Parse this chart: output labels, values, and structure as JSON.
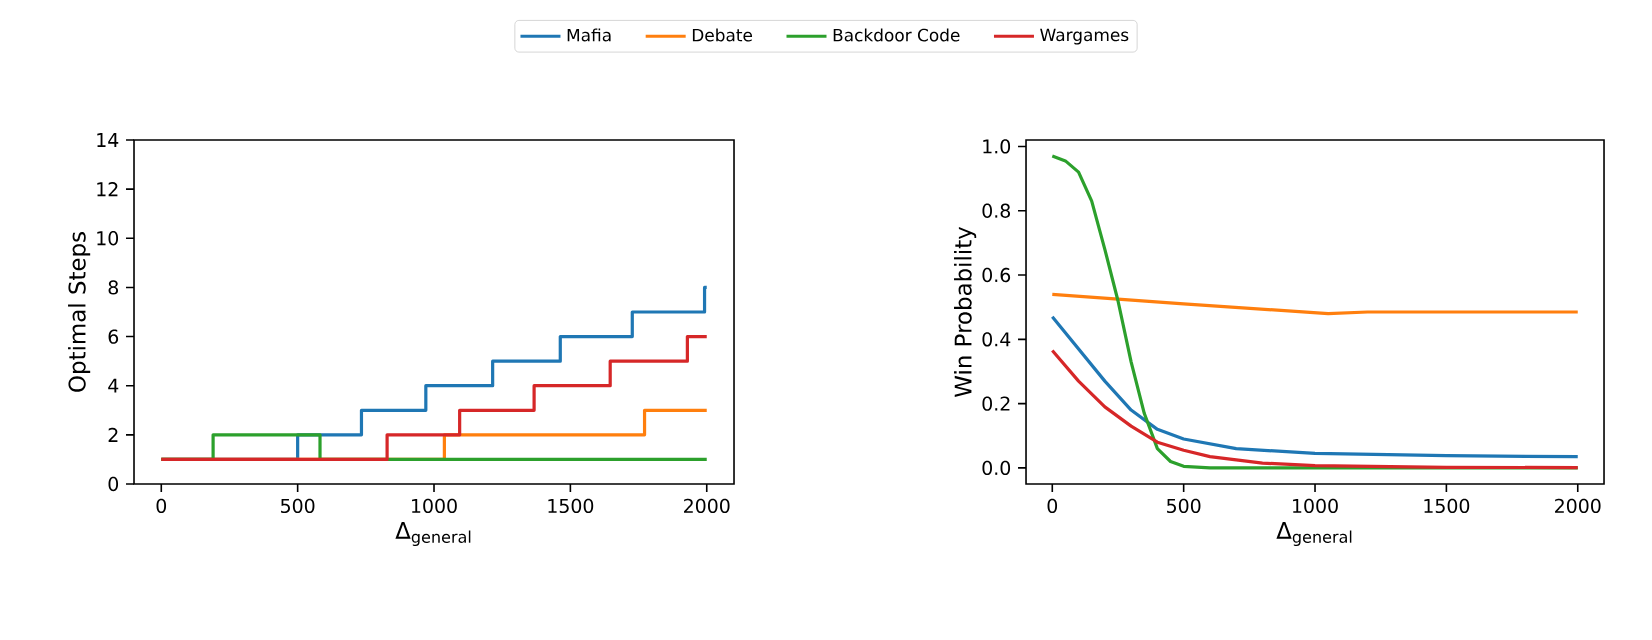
{
  "chart_data": [
    {
      "type": "step",
      "ylabel": "Optimal Steps",
      "xlabel": "Δ$_{general}$",
      "xlim": [
        -100,
        2100
      ],
      "ylim": [
        0,
        14
      ],
      "xticks": [
        0,
        500,
        1000,
        1500,
        2000
      ],
      "yticks": [
        0,
        2,
        4,
        6,
        8,
        10,
        12,
        14
      ],
      "legend": "top",
      "series": [
        {
          "name": "Mafia",
          "color": "#1f77b4",
          "x": [
            0,
            500,
            734,
            970,
            1215,
            1463,
            1727,
            1992,
            2000
          ],
          "values": [
            1,
            2,
            3,
            4,
            5,
            6,
            7,
            8,
            8
          ]
        },
        {
          "name": "Debate",
          "color": "#ff7f0e",
          "x": [
            0,
            1038,
            1772,
            2000
          ],
          "values": [
            1,
            2,
            3,
            3
          ]
        },
        {
          "name": "Backdoor Code",
          "color": "#2ca02c",
          "x": [
            0,
            190,
            582,
            2000
          ],
          "values": [
            1,
            2,
            1,
            1
          ]
        },
        {
          "name": "Wargames",
          "color": "#d62728",
          "x": [
            0,
            828,
            1094,
            1367,
            1646,
            1929,
            2000
          ],
          "values": [
            1,
            2,
            3,
            4,
            5,
            6,
            6
          ]
        }
      ]
    },
    {
      "type": "line",
      "ylabel": "Win Probability",
      "xlabel": "Δ$_{general}$",
      "xlim": [
        -100,
        2100
      ],
      "ylim": [
        -0.05,
        1.02
      ],
      "xticks": [
        0,
        500,
        1000,
        1500,
        2000
      ],
      "yticks": [
        {
          "value": 0,
          "label": "0.0"
        },
        0.2,
        0.4,
        0.6,
        0.8,
        {
          "value": 1,
          "label": "1.0"
        }
      ],
      "series": [
        {
          "color": "#1f77b4",
          "x": [
            0,
            100,
            200,
            300,
            400,
            500,
            600,
            700,
            1000,
            1500,
            2000
          ],
          "values": [
            0.47,
            0.37,
            0.27,
            0.18,
            0.12,
            0.09,
            0.075,
            0.06,
            0.045,
            0.038,
            0.035
          ]
        },
        {
          "color": "#ff7f0e",
          "x": [
            0,
            500,
            1050,
            1200,
            2000
          ],
          "values": [
            0.54,
            0.51,
            0.48,
            0.485,
            0.485
          ]
        },
        {
          "color": "#2ca02c",
          "x": [
            0,
            50,
            100,
            150,
            200,
            250,
            300,
            350,
            400,
            450,
            500,
            600,
            2000
          ],
          "values": [
            0.97,
            0.955,
            0.92,
            0.83,
            0.68,
            0.52,
            0.33,
            0.17,
            0.06,
            0.02,
            0.005,
            0.0,
            0.0
          ]
        },
        {
          "color": "#d62728",
          "x": [
            0,
            100,
            200,
            300,
            400,
            500,
            600,
            800,
            1000,
            1500,
            2000
          ],
          "values": [
            0.365,
            0.27,
            0.19,
            0.13,
            0.08,
            0.055,
            0.035,
            0.015,
            0.007,
            0.002,
            0.001
          ]
        }
      ]
    }
  ]
}
